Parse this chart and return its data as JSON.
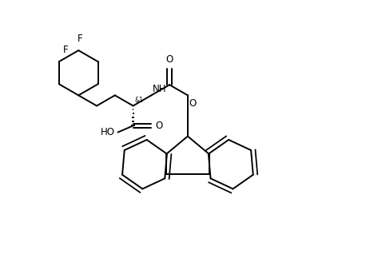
{
  "background_color": "#ffffff",
  "line_color": "#000000",
  "line_width": 1.4,
  "font_size": 8.5,
  "fig_width": 4.64,
  "fig_height": 3.23,
  "dpi": 100,
  "xlim": [
    0,
    10
  ],
  "ylim": [
    0,
    7
  ]
}
